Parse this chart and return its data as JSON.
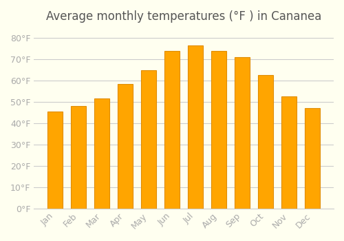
{
  "title": "Average monthly temperatures (°F ) in Cananea",
  "months": [
    "Jan",
    "Feb",
    "Mar",
    "Apr",
    "May",
    "Jun",
    "Jul",
    "Aug",
    "Sep",
    "Oct",
    "Nov",
    "Dec"
  ],
  "values": [
    45.5,
    48,
    51.5,
    58.5,
    65,
    74,
    76.5,
    74,
    71,
    62.5,
    52.5,
    47
  ],
  "bar_color": "#FFA500",
  "bar_edge_color": "#E08C00",
  "background_color": "#FFFFF0",
  "grid_color": "#CCCCCC",
  "ylim": [
    0,
    84
  ],
  "yticks": [
    0,
    10,
    20,
    30,
    40,
    50,
    60,
    70,
    80
  ],
  "title_fontsize": 12,
  "tick_fontsize": 9,
  "tick_label_color": "#AAAAAA",
  "title_color": "#555555"
}
